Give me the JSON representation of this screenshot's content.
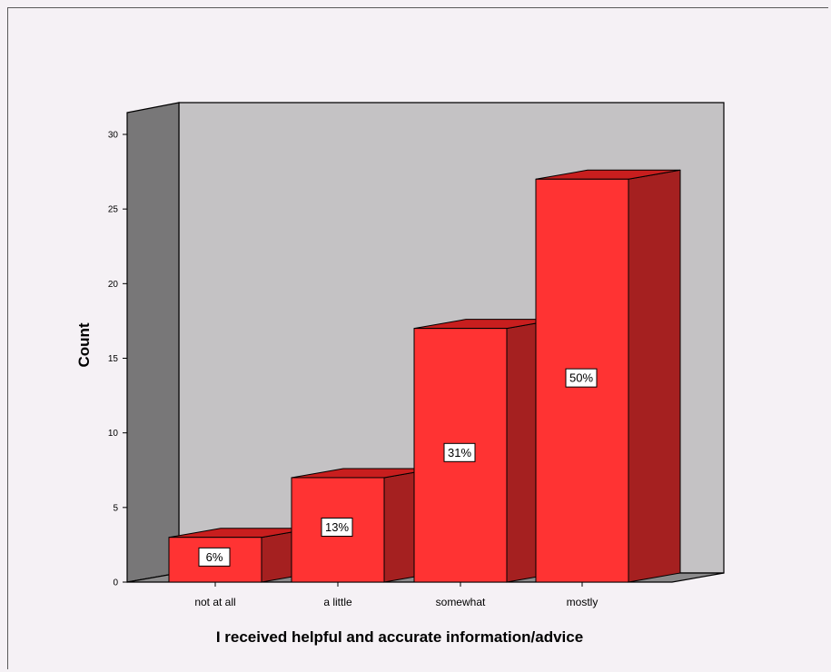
{
  "chart_data": {
    "type": "bar",
    "categories": [
      "not at all",
      "a little",
      "somewhat",
      "mostly"
    ],
    "values": [
      3,
      7,
      17,
      27
    ],
    "data_labels": [
      "6%",
      "13%",
      "31%",
      "50%"
    ],
    "xlabel": "I received helpful and accurate information/advice",
    "ylabel": "Count",
    "ylim": [
      0,
      30
    ],
    "yticks": [
      "0",
      "5",
      "10",
      "15",
      "20",
      "25",
      "30"
    ],
    "style": "3d",
    "grid": false,
    "colors": {
      "bar_front": "#ff3333",
      "bar_side": "#a52020",
      "bar_top": "#c81e1e",
      "back_wall": "#c4c2c4",
      "side_wall": "#787778",
      "floor": "#8c8b8c",
      "label_box": "#ffffff",
      "background": "#f5f1f5"
    }
  }
}
